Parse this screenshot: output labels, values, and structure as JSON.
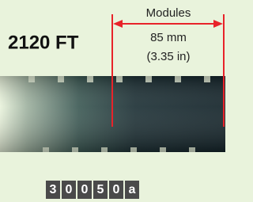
{
  "title": "2120 FT",
  "dimension": {
    "label": "Modules",
    "metric": "85 mm",
    "imperial": "(3.35 in)"
  },
  "code": [
    "3",
    "0",
    "0",
    "5",
    "0",
    "a"
  ]
}
